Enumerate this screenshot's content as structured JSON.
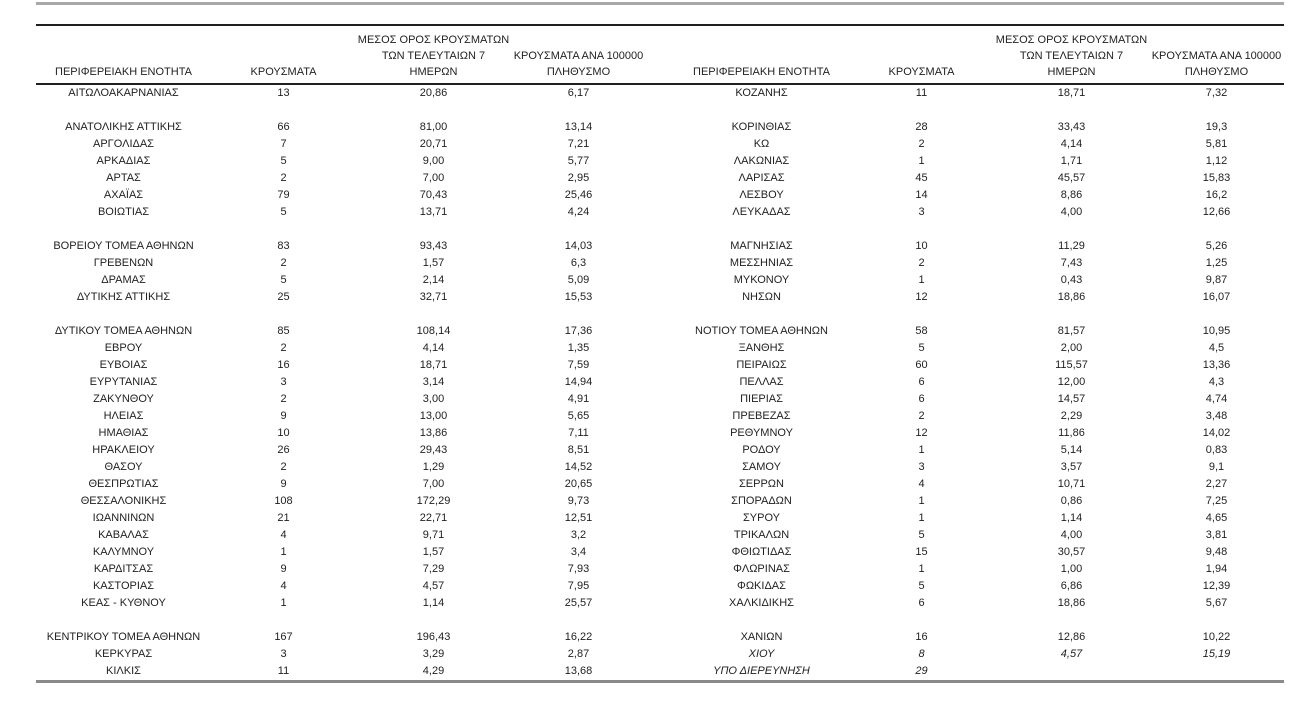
{
  "page": {
    "background": "#ffffff",
    "text_color": "#1f1f1f",
    "top_bar_color": "#a8a8a8",
    "dark_rule_color": "#1f1f1f",
    "bottom_rule_color": "#8a8a8a"
  },
  "table": {
    "headers": {
      "region": "ΠΕΡΙΦΕΡΕΙΑΚΗ ΕΝΟΤΗΤΑ",
      "cases": "ΚΡΟΥΣΜΑΤΑ",
      "avg7": "ΜΕΣΟΣ ΟΡΟΣ ΚΡΟΥΣΜΑΤΩΝ\nΤΩΝ ΤΕΛΕΥΤΑΙΩΝ 7\nΗΜΕΡΩΝ",
      "per100k": "ΚΡΟΥΣΜΑΤΑ ΑΝΑ 100000\nΠΛΗΘΥΣΜΟ"
    },
    "rows_left": [
      {
        "name": "ΑΙΤΩΛΟΑΚΑΡΝΑΝΙΑΣ",
        "cases": "13",
        "avg": "20,86",
        "per100k": "6,17"
      },
      null,
      {
        "name": "ΑΝΑΤΟΛΙΚΗΣ ΑΤΤΙΚΗΣ",
        "cases": "66",
        "avg": "81,00",
        "per100k": "13,14"
      },
      {
        "name": "ΑΡΓΟΛΙΔΑΣ",
        "cases": "7",
        "avg": "20,71",
        "per100k": "7,21"
      },
      {
        "name": "ΑΡΚΑΔΙΑΣ",
        "cases": "5",
        "avg": "9,00",
        "per100k": "5,77"
      },
      {
        "name": "ΑΡΤΑΣ",
        "cases": "2",
        "avg": "7,00",
        "per100k": "2,95"
      },
      {
        "name": "ΑΧΑΪΑΣ",
        "cases": "79",
        "avg": "70,43",
        "per100k": "25,46"
      },
      {
        "name": "ΒΟΙΩΤΙΑΣ",
        "cases": "5",
        "avg": "13,71",
        "per100k": "4,24"
      },
      null,
      {
        "name": "ΒΟΡΕΙΟΥ ΤΟΜΕΑ ΑΘΗΝΩΝ",
        "cases": "83",
        "avg": "93,43",
        "per100k": "14,03"
      },
      {
        "name": "ΓΡΕΒΕΝΩΝ",
        "cases": "2",
        "avg": "1,57",
        "per100k": "6,3"
      },
      {
        "name": "ΔΡΑΜΑΣ",
        "cases": "5",
        "avg": "2,14",
        "per100k": "5,09"
      },
      {
        "name": "ΔΥΤΙΚΗΣ ΑΤΤΙΚΗΣ",
        "cases": "25",
        "avg": "32,71",
        "per100k": "15,53"
      },
      null,
      {
        "name": "ΔΥΤΙΚΟΥ ΤΟΜΕΑ ΑΘΗΝΩΝ",
        "cases": "85",
        "avg": "108,14",
        "per100k": "17,36"
      },
      {
        "name": "ΕΒΡΟΥ",
        "cases": "2",
        "avg": "4,14",
        "per100k": "1,35"
      },
      {
        "name": "ΕΥΒΟΙΑΣ",
        "cases": "16",
        "avg": "18,71",
        "per100k": "7,59"
      },
      {
        "name": "ΕΥΡΥΤΑΝΙΑΣ",
        "cases": "3",
        "avg": "3,14",
        "per100k": "14,94"
      },
      {
        "name": "ΖΑΚΥΝΘΟΥ",
        "cases": "2",
        "avg": "3,00",
        "per100k": "4,91"
      },
      {
        "name": "ΗΛΕΙΑΣ",
        "cases": "9",
        "avg": "13,00",
        "per100k": "5,65"
      },
      {
        "name": "ΗΜΑΘΙΑΣ",
        "cases": "10",
        "avg": "13,86",
        "per100k": "7,11"
      },
      {
        "name": "ΗΡΑΚΛΕΙΟΥ",
        "cases": "26",
        "avg": "29,43",
        "per100k": "8,51"
      },
      {
        "name": "ΘΑΣΟΥ",
        "cases": "2",
        "avg": "1,29",
        "per100k": "14,52"
      },
      {
        "name": "ΘΕΣΠΡΩΤΙΑΣ",
        "cases": "9",
        "avg": "7,00",
        "per100k": "20,65"
      },
      {
        "name": "ΘΕΣΣΑΛΟΝΙΚΗΣ",
        "cases": "108",
        "avg": "172,29",
        "per100k": "9,73"
      },
      {
        "name": "ΙΩΑΝΝΙΝΩΝ",
        "cases": "21",
        "avg": "22,71",
        "per100k": "12,51"
      },
      {
        "name": "ΚΑΒΑΛΑΣ",
        "cases": "4",
        "avg": "9,71",
        "per100k": "3,2"
      },
      {
        "name": "ΚΑΛΥΜΝΟΥ",
        "cases": "1",
        "avg": "1,57",
        "per100k": "3,4"
      },
      {
        "name": "ΚΑΡΔΙΤΣΑΣ",
        "cases": "9",
        "avg": "7,29",
        "per100k": "7,93"
      },
      {
        "name": "ΚΑΣΤΟΡΙΑΣ",
        "cases": "4",
        "avg": "4,57",
        "per100k": "7,95"
      },
      {
        "name": "ΚΕΑΣ - ΚΥΘΝΟΥ",
        "cases": "1",
        "avg": "1,14",
        "per100k": "25,57"
      },
      null,
      {
        "name": "ΚΕΝΤΡΙΚΟΥ ΤΟΜΕΑ ΑΘΗΝΩΝ",
        "cases": "167",
        "avg": "196,43",
        "per100k": "16,22"
      },
      {
        "name": "ΚΕΡΚΥΡΑΣ",
        "cases": "3",
        "avg": "3,29",
        "per100k": "2,87"
      },
      {
        "name": "ΚΙΛΚΙΣ",
        "cases": "11",
        "avg": "4,29",
        "per100k": "13,68"
      }
    ],
    "rows_right": [
      {
        "name": "ΚΟΖΑΝΗΣ",
        "cases": "11",
        "avg": "18,71",
        "per100k": "7,32"
      },
      null,
      {
        "name": "ΚΟΡΙΝΘΙΑΣ",
        "cases": "28",
        "avg": "33,43",
        "per100k": "19,3"
      },
      {
        "name": "ΚΩ",
        "cases": "2",
        "avg": "4,14",
        "per100k": "5,81"
      },
      {
        "name": "ΛΑΚΩΝΙΑΣ",
        "cases": "1",
        "avg": "1,71",
        "per100k": "1,12"
      },
      {
        "name": "ΛΑΡΙΣΑΣ",
        "cases": "45",
        "avg": "45,57",
        "per100k": "15,83"
      },
      {
        "name": "ΛΕΣΒΟΥ",
        "cases": "14",
        "avg": "8,86",
        "per100k": "16,2"
      },
      {
        "name": "ΛΕΥΚΑΔΑΣ",
        "cases": "3",
        "avg": "4,00",
        "per100k": "12,66"
      },
      null,
      {
        "name": "ΜΑΓΝΗΣΙΑΣ",
        "cases": "10",
        "avg": "11,29",
        "per100k": "5,26"
      },
      {
        "name": "ΜΕΣΣΗΝΙΑΣ",
        "cases": "2",
        "avg": "7,43",
        "per100k": "1,25"
      },
      {
        "name": "ΜΥΚΟΝΟΥ",
        "cases": "1",
        "avg": "0,43",
        "per100k": "9,87"
      },
      {
        "name": "ΝΗΣΩΝ",
        "cases": "12",
        "avg": "18,86",
        "per100k": "16,07"
      },
      null,
      {
        "name": "ΝΟΤΙΟΥ ΤΟΜΕΑ ΑΘΗΝΩΝ",
        "cases": "58",
        "avg": "81,57",
        "per100k": "10,95"
      },
      {
        "name": "ΞΑΝΘΗΣ",
        "cases": "5",
        "avg": "2,00",
        "per100k": "4,5"
      },
      {
        "name": "ΠΕΙΡΑΙΩΣ",
        "cases": "60",
        "avg": "115,57",
        "per100k": "13,36"
      },
      {
        "name": "ΠΕΛΛΑΣ",
        "cases": "6",
        "avg": "12,00",
        "per100k": "4,3"
      },
      {
        "name": "ΠΙΕΡΙΑΣ",
        "cases": "6",
        "avg": "14,57",
        "per100k": "4,74"
      },
      {
        "name": "ΠΡΕΒΕΖΑΣ",
        "cases": "2",
        "avg": "2,29",
        "per100k": "3,48"
      },
      {
        "name": "ΡΕΘΥΜΝΟΥ",
        "cases": "12",
        "avg": "11,86",
        "per100k": "14,02"
      },
      {
        "name": "ΡΟΔΟΥ",
        "cases": "1",
        "avg": "5,14",
        "per100k": "0,83"
      },
      {
        "name": "ΣΑΜΟΥ",
        "cases": "3",
        "avg": "3,57",
        "per100k": "9,1"
      },
      {
        "name": "ΣΕΡΡΩΝ",
        "cases": "4",
        "avg": "10,71",
        "per100k": "2,27"
      },
      {
        "name": "ΣΠΟΡΑΔΩΝ",
        "cases": "1",
        "avg": "0,86",
        "per100k": "7,25"
      },
      {
        "name": "ΣΥΡΟΥ",
        "cases": "1",
        "avg": "1,14",
        "per100k": "4,65"
      },
      {
        "name": "ΤΡΙΚΑΛΩΝ",
        "cases": "5",
        "avg": "4,00",
        "per100k": "3,81"
      },
      {
        "name": "ΦΘΙΩΤΙΔΑΣ",
        "cases": "15",
        "avg": "30,57",
        "per100k": "9,48"
      },
      {
        "name": "ΦΛΩΡΙΝΑΣ",
        "cases": "1",
        "avg": "1,00",
        "per100k": "1,94"
      },
      {
        "name": "ΦΩΚΙΔΑΣ",
        "cases": "5",
        "avg": "6,86",
        "per100k": "12,39"
      },
      {
        "name": "ΧΑΛΚΙΔΙΚΗΣ",
        "cases": "6",
        "avg": "18,86",
        "per100k": "5,67"
      },
      null,
      {
        "name": "ΧΑΝΙΩΝ",
        "cases": "16",
        "avg": "12,86",
        "per100k": "10,22"
      },
      {
        "name": "ΧΙΟΥ",
        "cases": "8",
        "avg": "4,57",
        "per100k": "15,19",
        "style": "italic"
      },
      {
        "name": "ΥΠΟ ΔΙΕΡΕΥΝΗΣΗ",
        "cases": "29",
        "avg": "",
        "per100k": "",
        "style": "italic"
      }
    ]
  }
}
